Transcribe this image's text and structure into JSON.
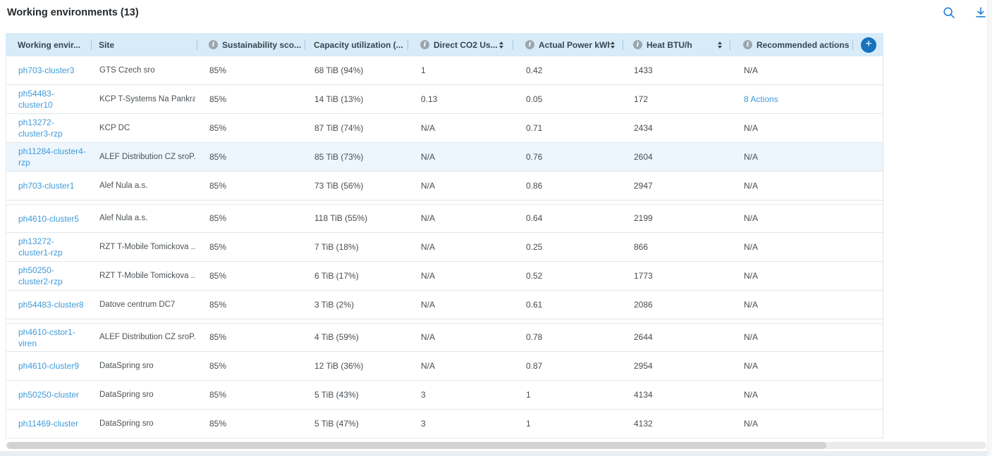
{
  "page": {
    "title": "Working environments (13)"
  },
  "toolbar": {
    "search_icon": "search",
    "download_icon": "download"
  },
  "icons": {
    "info_glyph": "i"
  },
  "colors": {
    "header_bg": "#d7ebf9",
    "link_blue": "#3f9bd9",
    "accent_blue": "#1673bd",
    "highlight_row_bg": "#edf6fd",
    "icon_blue": "#1777cf"
  },
  "table": {
    "add_column_label": "+",
    "columns": [
      {
        "key": "name",
        "label": "Working envir...",
        "info": false,
        "sort": false
      },
      {
        "key": "site",
        "label": "Site",
        "info": false,
        "sort": false
      },
      {
        "key": "sustainability",
        "label": "Sustainability sco...",
        "info": true,
        "sort": false
      },
      {
        "key": "capacity",
        "label": "Capacity utilization (...",
        "info": false,
        "sort": false
      },
      {
        "key": "co2",
        "label": "Direct CO2 Us...",
        "info": true,
        "sort": true
      },
      {
        "key": "power",
        "label": "Actual Power kWh",
        "info": true,
        "sort": true
      },
      {
        "key": "heat",
        "label": "Heat BTU/h",
        "info": true,
        "sort": true
      },
      {
        "key": "actions",
        "label": "Recommended actions",
        "info": true,
        "sort": false
      }
    ],
    "rows": [
      {
        "name": "ph703-cluster3",
        "site": "GTS Czech sro",
        "sustainability": "85%",
        "capacity": "68 TiB (94%)",
        "co2": "1",
        "power": "0.42",
        "heat": "1433",
        "actions": "N/A",
        "actions_link": false,
        "highlight": false,
        "group_gap": false
      },
      {
        "name": "ph54483-cluster10",
        "site": "KCP T-Systems Na Pankra...",
        "sustainability": "85%",
        "capacity": "14 TiB (13%)",
        "co2": "0.13",
        "power": "0.05",
        "heat": "172",
        "actions": "8 Actions",
        "actions_link": true,
        "highlight": false,
        "group_gap": false
      },
      {
        "name": "ph13272-cluster3-rzp",
        "site": "KCP DC",
        "sustainability": "85%",
        "capacity": "87 TiB (74%)",
        "co2": "N/A",
        "power": "0.71",
        "heat": "2434",
        "actions": "N/A",
        "actions_link": false,
        "highlight": false,
        "group_gap": false
      },
      {
        "name": "ph11284-cluster4-rzp",
        "site": "ALEF Distribution CZ sroP...",
        "sustainability": "85%",
        "capacity": "85 TiB (73%)",
        "co2": "N/A",
        "power": "0.76",
        "heat": "2604",
        "actions": "N/A",
        "actions_link": false,
        "highlight": true,
        "group_gap": false
      },
      {
        "name": "ph703-cluster1",
        "site": "Alef Nula a.s.",
        "sustainability": "85%",
        "capacity": "73 TiB (56%)",
        "co2": "N/A",
        "power": "0.86",
        "heat": "2947",
        "actions": "N/A",
        "actions_link": false,
        "highlight": false,
        "group_gap": false
      },
      {
        "name": "ph4610-cluster5",
        "site": "Alef Nula a.s.",
        "sustainability": "85%",
        "capacity": "118 TiB (55%)",
        "co2": "N/A",
        "power": "0.64",
        "heat": "2199",
        "actions": "N/A",
        "actions_link": false,
        "highlight": false,
        "group_gap": true
      },
      {
        "name": "ph13272-cluster1-rzp",
        "site": "RZT T-Mobile Tomickova ...",
        "sustainability": "85%",
        "capacity": "7 TiB (18%)",
        "co2": "N/A",
        "power": "0.25",
        "heat": "866",
        "actions": "N/A",
        "actions_link": false,
        "highlight": false,
        "group_gap": false
      },
      {
        "name": "ph50250-cluster2-rzp",
        "site": "RZT T-Mobile Tomickova ...",
        "sustainability": "85%",
        "capacity": "6 TiB (17%)",
        "co2": "N/A",
        "power": "0.52",
        "heat": "1773",
        "actions": "N/A",
        "actions_link": false,
        "highlight": false,
        "group_gap": false
      },
      {
        "name": "ph54483-cluster8",
        "site": "Datove centrum DC7",
        "sustainability": "85%",
        "capacity": "3 TiB (2%)",
        "co2": "N/A",
        "power": "0.61",
        "heat": "2086",
        "actions": "N/A",
        "actions_link": false,
        "highlight": false,
        "group_gap": false
      },
      {
        "name": "ph4610-cstor1-viren",
        "site": "ALEF Distribution CZ sroP...",
        "sustainability": "85%",
        "capacity": "4 TiB (59%)",
        "co2": "N/A",
        "power": "0.78",
        "heat": "2644",
        "actions": "N/A",
        "actions_link": false,
        "highlight": false,
        "group_gap": true
      },
      {
        "name": "ph4610-cluster9",
        "site": "DataSpring sro",
        "sustainability": "85%",
        "capacity": "12 TiB (36%)",
        "co2": "N/A",
        "power": "0.87",
        "heat": "2954",
        "actions": "N/A",
        "actions_link": false,
        "highlight": false,
        "group_gap": false
      },
      {
        "name": "ph50250-cluster",
        "site": "DataSpring sro",
        "sustainability": "85%",
        "capacity": "5 TiB (43%)",
        "co2": "3",
        "power": "1",
        "heat": "4134",
        "actions": "N/A",
        "actions_link": false,
        "highlight": false,
        "group_gap": false
      },
      {
        "name": "ph11469-cluster",
        "site": "DataSpring sro",
        "sustainability": "85%",
        "capacity": "5 TiB (47%)",
        "co2": "3",
        "power": "1",
        "heat": "4132",
        "actions": "N/A",
        "actions_link": false,
        "highlight": false,
        "group_gap": false
      }
    ]
  }
}
